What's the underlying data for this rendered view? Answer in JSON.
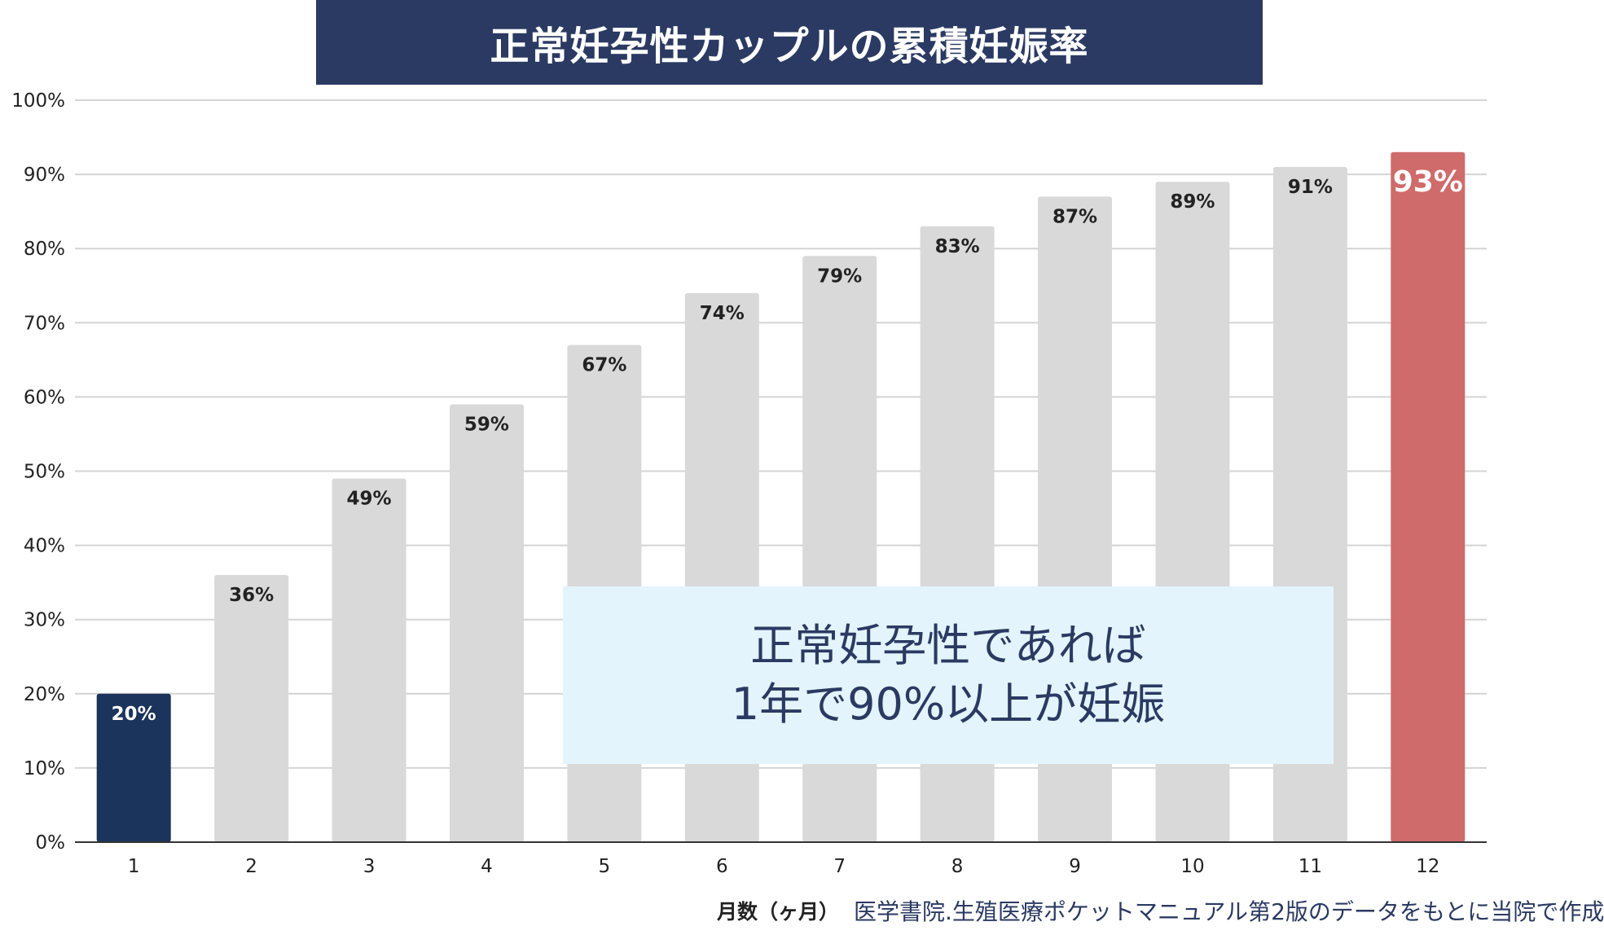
{
  "chart_data": {
    "type": "bar",
    "title": "正常妊孕性カップルの累積妊娠率",
    "categories": [
      "1",
      "2",
      "3",
      "4",
      "5",
      "6",
      "7",
      "8",
      "9",
      "10",
      "11",
      "12"
    ],
    "values": [
      20,
      36,
      49,
      59,
      67,
      74,
      79,
      83,
      87,
      89,
      91,
      93
    ],
    "value_labels": [
      "20%",
      "36%",
      "49%",
      "59%",
      "67%",
      "74%",
      "79%",
      "83%",
      "87%",
      "89%",
      "91%",
      "93%"
    ],
    "ylim": [
      0,
      100
    ],
    "yticks": [
      "0%",
      "10%",
      "20%",
      "30%",
      "40%",
      "50%",
      "60%",
      "70%",
      "80%",
      "90%",
      "100%"
    ],
    "xlabel": "月数（ヶ月）",
    "grid": true,
    "colors": {
      "default_bar": "#d9d9d9",
      "first_bar": "#1b345c",
      "last_bar": "#cf6b6a",
      "grid": "#d4d4d4",
      "axis": "#333333"
    }
  },
  "annotation": {
    "line1": "正常妊孕性であれば",
    "line2": "1年で90%以上が妊娠"
  },
  "source": "医学書院.生殖医療ポケットマニュアル第2版のデータをもとに当院で作成"
}
